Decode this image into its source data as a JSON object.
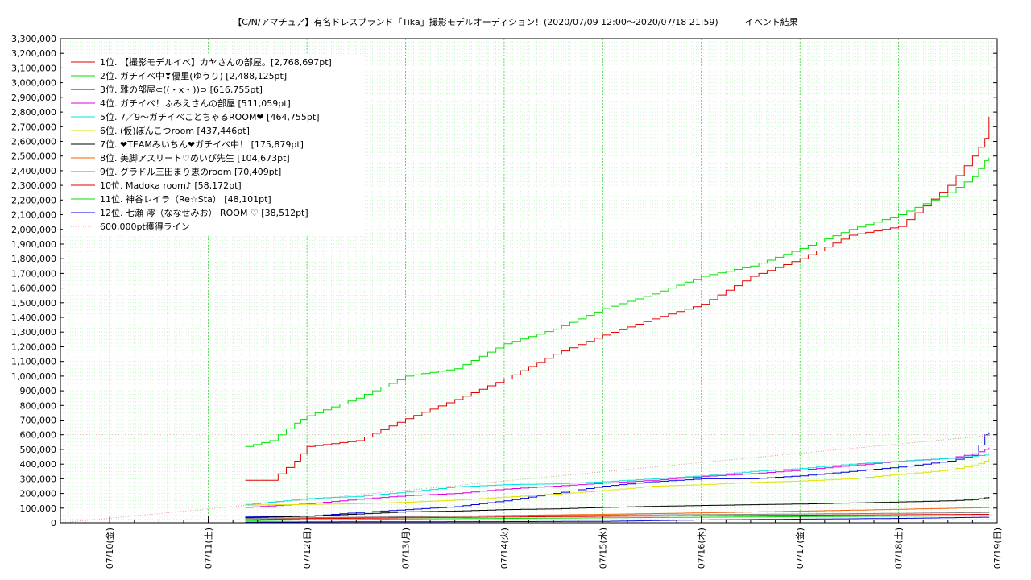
{
  "chart_data": {
    "type": "line",
    "title": "【C/N/アマチュア】有名ドレスブランド「Tika」撮影モデルオーディション！(2020/07/09 12:00〜2020/07/18 21:59)　　　イベント結果",
    "xlabel": "",
    "ylabel": "",
    "x_range": [
      "2020-07-09 12:00",
      "2020-07-19 00:00"
    ],
    "ylim": [
      0,
      3300000
    ],
    "y_ticks": [
      "0",
      "100,000",
      "200,000",
      "300,000",
      "400,000",
      "500,000",
      "600,000",
      "700,000",
      "800,000",
      "900,000",
      "1,000,000",
      "1,100,000",
      "1,200,000",
      "1,300,000",
      "1,400,000",
      "1,500,000",
      "1,600,000",
      "1,700,000",
      "1,800,000",
      "1,900,000",
      "2,000,000",
      "2,100,000",
      "2,200,000",
      "2,300,000",
      "2,400,000",
      "2,500,000",
      "2,600,000",
      "2,700,000",
      "2,800,000",
      "2,900,000",
      "3,000,000",
      "3,100,000",
      "3,200,000",
      "3,300,000"
    ],
    "x_ticks": [
      "07/10(金)",
      "07/11(土)",
      "07/12(日)",
      "07/13(月)",
      "07/14(火)",
      "07/15(水)",
      "07/16(木)",
      "07/17(金)",
      "07/18(土)",
      "07/19(日)"
    ],
    "grid": true,
    "legend_position": "top-left",
    "series": [
      {
        "name": "1位. 【撮影モデルイベ】カヤさんの部屋。[2,768,697pt]",
        "color": "#e00000",
        "x": [
          "2020-07-11 09:00",
          "2020-07-11 15:00",
          "2020-07-11 21:00",
          "2020-07-12 00:00",
          "2020-07-12 12:00",
          "2020-07-13 00:00",
          "2020-07-13 12:00",
          "2020-07-14 00:00",
          "2020-07-14 12:00",
          "2020-07-15 00:00",
          "2020-07-15 12:00",
          "2020-07-16 00:00",
          "2020-07-16 12:00",
          "2020-07-17 00:00",
          "2020-07-17 12:00",
          "2020-07-18 00:00",
          "2020-07-18 12:00",
          "2020-07-18 18:00",
          "2020-07-18 21:00",
          "2020-07-18 22:00"
        ],
        "y": [
          290000,
          290000,
          420000,
          520000,
          560000,
          710000,
          840000,
          980000,
          1150000,
          1280000,
          1390000,
          1490000,
          1680000,
          1800000,
          1960000,
          2020000,
          2300000,
          2500000,
          2620000,
          2768697
        ]
      },
      {
        "name": "2位. ガチイベ中❣優里(ゆうり) [2,488,125pt]",
        "color": "#00e000",
        "x": [
          "2020-07-11 09:00",
          "2020-07-11 15:00",
          "2020-07-11 21:00",
          "2020-07-12 00:00",
          "2020-07-12 12:00",
          "2020-07-13 00:00",
          "2020-07-13 12:00",
          "2020-07-14 00:00",
          "2020-07-14 12:00",
          "2020-07-15 00:00",
          "2020-07-15 12:00",
          "2020-07-16 00:00",
          "2020-07-16 12:00",
          "2020-07-17 00:00",
          "2020-07-17 12:00",
          "2020-07-18 00:00",
          "2020-07-18 12:00",
          "2020-07-18 18:00",
          "2020-07-18 21:00",
          "2020-07-18 22:00"
        ],
        "y": [
          520000,
          560000,
          680000,
          730000,
          850000,
          1000000,
          1050000,
          1220000,
          1320000,
          1460000,
          1560000,
          1680000,
          1750000,
          1870000,
          2000000,
          2100000,
          2250000,
          2360000,
          2470000,
          2488125
        ]
      },
      {
        "name": "3位. 雅の部屋⊂((・x・))⊃ [616,755pt]",
        "color": "#0000e0",
        "x": [
          "2020-07-11 09:00",
          "2020-07-12 00:00",
          "2020-07-12 12:00",
          "2020-07-13 00:00",
          "2020-07-13 12:00",
          "2020-07-14 00:00",
          "2020-07-14 12:00",
          "2020-07-15 00:00",
          "2020-07-15 12:00",
          "2020-07-16 00:00",
          "2020-07-16 12:00",
          "2020-07-17 00:00",
          "2020-07-17 12:00",
          "2020-07-18 00:00",
          "2020-07-18 12:00",
          "2020-07-18 18:00",
          "2020-07-18 21:00",
          "2020-07-18 22:00"
        ],
        "y": [
          40000,
          45000,
          70000,
          90000,
          110000,
          150000,
          200000,
          250000,
          280000,
          300000,
          300000,
          320000,
          350000,
          380000,
          420000,
          460000,
          600000,
          616755
        ]
      },
      {
        "name": "4位. ガチイベ！ふみえさんの部屋 [511,059pt]",
        "color": "#e000e0",
        "x": [
          "2020-07-11 09:00",
          "2020-07-12 00:00",
          "2020-07-12 12:00",
          "2020-07-13 00:00",
          "2020-07-13 12:00",
          "2020-07-14 00:00",
          "2020-07-14 12:00",
          "2020-07-15 00:00",
          "2020-07-15 12:00",
          "2020-07-16 00:00",
          "2020-07-16 12:00",
          "2020-07-17 00:00",
          "2020-07-17 12:00",
          "2020-07-18 00:00",
          "2020-07-18 12:00",
          "2020-07-18 18:00",
          "2020-07-18 21:00",
          "2020-07-18 22:00"
        ],
        "y": [
          105000,
          130000,
          160000,
          185000,
          200000,
          230000,
          250000,
          270000,
          290000,
          315000,
          335000,
          360000,
          390000,
          420000,
          440000,
          470000,
          500000,
          511059
        ]
      },
      {
        "name": "5位. 7／9〜ガチイベことちゃるROOM❤ [464,755pt]",
        "color": "#00e0e0",
        "x": [
          "2020-07-11 09:00",
          "2020-07-12 00:00",
          "2020-07-12 12:00",
          "2020-07-13 00:00",
          "2020-07-13 12:00",
          "2020-07-14 00:00",
          "2020-07-14 12:00",
          "2020-07-15 00:00",
          "2020-07-15 12:00",
          "2020-07-16 00:00",
          "2020-07-16 12:00",
          "2020-07-17 00:00",
          "2020-07-17 12:00",
          "2020-07-18 00:00",
          "2020-07-18 12:00",
          "2020-07-18 18:00",
          "2020-07-18 21:00",
          "2020-07-18 22:00"
        ],
        "y": [
          125000,
          165000,
          180000,
          210000,
          245000,
          260000,
          265000,
          280000,
          300000,
          320000,
          350000,
          370000,
          400000,
          420000,
          440000,
          455000,
          462000,
          464755
        ]
      },
      {
        "name": "6位. (仮)ぽんこつroom [437,446pt]",
        "color": "#e0e000",
        "x": [
          "2020-07-11 09:00",
          "2020-07-12 00:00",
          "2020-07-12 12:00",
          "2020-07-13 00:00",
          "2020-07-13 12:00",
          "2020-07-14 00:00",
          "2020-07-14 12:00",
          "2020-07-15 00:00",
          "2020-07-15 12:00",
          "2020-07-16 00:00",
          "2020-07-16 12:00",
          "2020-07-17 00:00",
          "2020-07-17 12:00",
          "2020-07-18 00:00",
          "2020-07-18 12:00",
          "2020-07-18 18:00",
          "2020-07-18 21:00",
          "2020-07-18 22:00"
        ],
        "y": [
          120000,
          125000,
          130000,
          140000,
          155000,
          175000,
          195000,
          220000,
          250000,
          260000,
          275000,
          285000,
          300000,
          330000,
          360000,
          390000,
          420000,
          437446
        ]
      },
      {
        "name": "7位. ❤TEAMみいちん❤ガチイベ中！ [175,879pt]",
        "color": "#000000",
        "x": [
          "2020-07-11 09:00",
          "2020-07-12 00:00",
          "2020-07-12 12:00",
          "2020-07-13 00:00",
          "2020-07-13 12:00",
          "2020-07-14 00:00",
          "2020-07-14 12:00",
          "2020-07-15 00:00",
          "2020-07-15 12:00",
          "2020-07-16 00:00",
          "2020-07-16 12:00",
          "2020-07-17 00:00",
          "2020-07-17 12:00",
          "2020-07-18 00:00",
          "2020-07-18 12:00",
          "2020-07-18 18:00",
          "2020-07-18 21:00",
          "2020-07-18 22:00"
        ],
        "y": [
          35000,
          45000,
          60000,
          75000,
          80000,
          90000,
          95000,
          105000,
          112000,
          118000,
          123000,
          128000,
          135000,
          142000,
          150000,
          158000,
          170000,
          175879
        ]
      },
      {
        "name": "8位. 美脚アスリート♡めいぴ先生 [104,673pt]",
        "color": "#f06000",
        "x": [
          "2020-07-11 09:00",
          "2020-07-12 00:00",
          "2020-07-13 00:00",
          "2020-07-14 00:00",
          "2020-07-15 00:00",
          "2020-07-16 00:00",
          "2020-07-17 00:00",
          "2020-07-18 00:00",
          "2020-07-18 22:00"
        ],
        "y": [
          20000,
          30000,
          40000,
          50000,
          58000,
          68000,
          80000,
          92000,
          104673
        ]
      },
      {
        "name": "9位. グラドル三田まり恵のroom [70,409pt]",
        "color": "#808080",
        "x": [
          "2020-07-11 09:00",
          "2020-07-12 00:00",
          "2020-07-13 00:00",
          "2020-07-14 00:00",
          "2020-07-15 00:00",
          "2020-07-16 00:00",
          "2020-07-17 00:00",
          "2020-07-18 00:00",
          "2020-07-18 22:00"
        ],
        "y": [
          30000,
          35000,
          42000,
          48000,
          52000,
          56000,
          60000,
          65000,
          70409
        ]
      },
      {
        "name": "10位. Madoka room♪ [58,172pt]",
        "color": "#e00000",
        "x": [
          "2020-07-11 09:00",
          "2020-07-12 00:00",
          "2020-07-13 00:00",
          "2020-07-14 00:00",
          "2020-07-15 00:00",
          "2020-07-16 00:00",
          "2020-07-17 00:00",
          "2020-07-18 00:00",
          "2020-07-18 22:00"
        ],
        "y": [
          22000,
          28000,
          34000,
          40000,
          44000,
          48000,
          52000,
          55000,
          58172
        ]
      },
      {
        "name": "11位. 神谷レイラ（Re☆Sta） [48,101pt]",
        "color": "#00e000",
        "x": [
          "2020-07-11 09:00",
          "2020-07-12 00:00",
          "2020-07-13 00:00",
          "2020-07-14 00:00",
          "2020-07-15 00:00",
          "2020-07-16 00:00",
          "2020-07-17 00:00",
          "2020-07-18 00:00",
          "2020-07-18 22:00"
        ],
        "y": [
          15000,
          20000,
          26000,
          30000,
          34000,
          38000,
          42000,
          45000,
          48101
        ]
      },
      {
        "name": "12位. 七瀬 澪（ななせみお） ROOM ♡ [38,512pt]",
        "color": "#0000e0",
        "x": [
          "2020-07-11 09:00",
          "2020-07-12 00:00",
          "2020-07-13 00:00",
          "2020-07-14 00:00",
          "2020-07-15 00:00",
          "2020-07-16 00:00",
          "2020-07-17 00:00",
          "2020-07-18 00:00",
          "2020-07-18 22:00"
        ],
        "y": [
          5000,
          6000,
          7000,
          8000,
          10000,
          20000,
          25000,
          30000,
          38512
        ]
      },
      {
        "name": "600,000pt獲得ライン",
        "color": "#e09090",
        "dotted": true,
        "x": [
          "2020-07-09 12:00",
          "2020-07-19 00:00"
        ],
        "y": [
          0,
          600000
        ]
      }
    ]
  }
}
